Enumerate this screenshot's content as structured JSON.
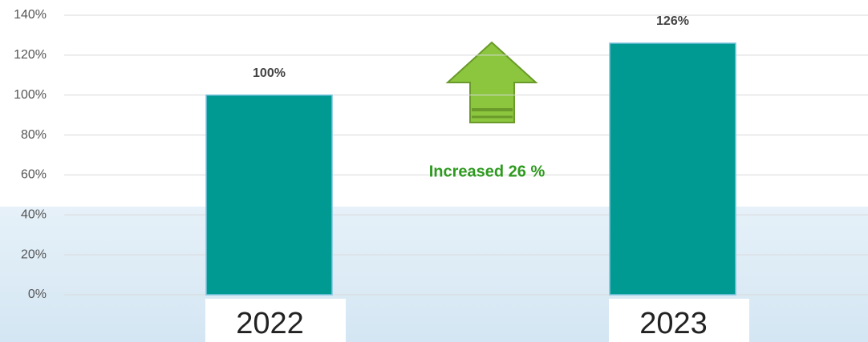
{
  "chart_data": {
    "type": "bar",
    "categories": [
      "2022",
      "2023"
    ],
    "values": [
      100,
      126
    ],
    "value_labels": [
      "100%",
      "126%"
    ],
    "color": "#009a93",
    "annotation": "Increased 26 %",
    "ylim": [
      0,
      140
    ],
    "yticks": [
      {
        "value": 0,
        "label": "0%"
      },
      {
        "value": 20,
        "label": "20%"
      },
      {
        "value": 40,
        "label": "40%"
      },
      {
        "value": 60,
        "label": "60%"
      },
      {
        "value": 80,
        "label": "80%"
      },
      {
        "value": 100,
        "label": "100%"
      },
      {
        "value": 120,
        "label": "120%"
      },
      {
        "value": 140,
        "label": "140%"
      }
    ],
    "grid": true
  }
}
